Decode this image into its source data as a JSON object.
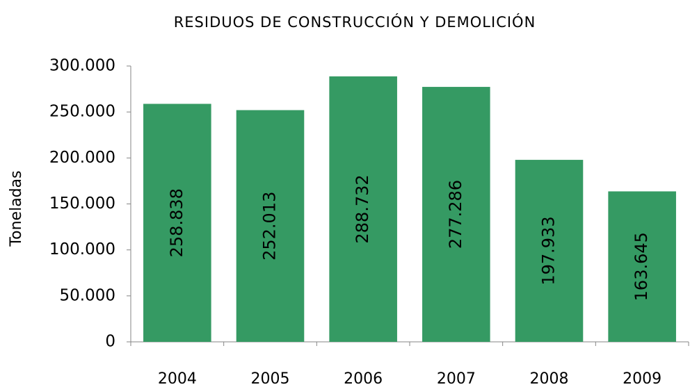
{
  "chart_data": {
    "type": "bar",
    "title": "RESIDUOS DE CONSTRUCCIÓN Y DEMOLICIÓN",
    "y_label": "Toneladas",
    "categories": [
      "2004",
      "2005",
      "2006",
      "2007",
      "2008",
      "2009"
    ],
    "values": [
      258838,
      252013,
      288732,
      277286,
      197933,
      163645
    ],
    "value_labels": [
      "258.838",
      "252.013",
      "288.732",
      "277.286",
      "197.933",
      "163.645"
    ],
    "color": "#359a63",
    "ylim": [
      0,
      300000
    ],
    "yticks": [
      0,
      {
        "value": 50000,
        "label": "50.000"
      },
      {
        "value": 100000,
        "label": "100.000"
      },
      {
        "value": 150000,
        "label": "150.000"
      },
      {
        "value": 200000,
        "label": "200.000"
      },
      {
        "value": 250000,
        "label": "250.000"
      },
      {
        "value": 300000,
        "label": "300.000"
      }
    ],
    "grid": false
  }
}
